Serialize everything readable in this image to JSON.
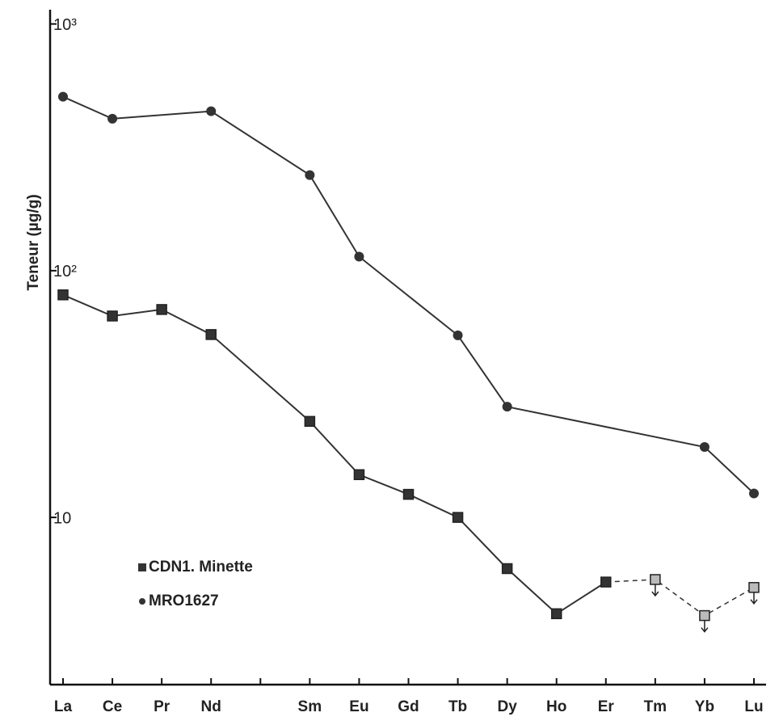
{
  "chart_data": {
    "type": "line",
    "y_label": "Teneur (µg/g)",
    "log_y": true,
    "connect_nulls": true,
    "categories": [
      "La",
      "Ce",
      "Pr",
      "Nd",
      null,
      "Sm",
      "Eu",
      "Gd",
      "Tb",
      "Dy",
      "Ho",
      "Er",
      "Tm",
      "Yb",
      "Lu"
    ],
    "series": [
      {
        "name": "CDN1. Minette",
        "marker": "square",
        "color": "#333333",
        "values": [
          79.8,
          65.5,
          69.6,
          55.1,
          null,
          24.5,
          14.9,
          12.4,
          10,
          6.2,
          4.07,
          5.47,
          5.6,
          4.0,
          5.2
        ],
        "upper_limit": [
          false,
          false,
          false,
          false,
          false,
          false,
          false,
          false,
          false,
          false,
          false,
          false,
          true,
          true,
          true
        ]
      },
      {
        "name": "MRO1627",
        "marker": "circle",
        "color": "#333333",
        "values": [
          507,
          413,
          null,
          443,
          null,
          244,
          114,
          null,
          54.7,
          28.1,
          null,
          null,
          null,
          19.3,
          12.5
        ]
      }
    ],
    "ylim": [
      2.1,
      1100
    ],
    "yticks": [
      {
        "value": 1000,
        "label": "10³"
      },
      {
        "value": 100,
        "label": "10²"
      },
      10
    ],
    "legend": "lower left"
  }
}
